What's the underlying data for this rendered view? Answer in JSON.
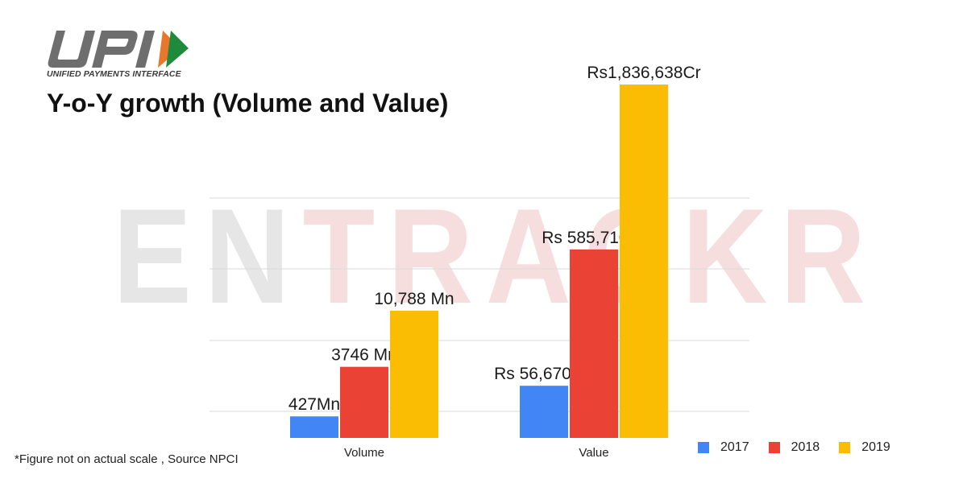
{
  "brand": {
    "logo_text": "UPI",
    "caption": "UNIFIED PAYMENTS INTERFACE",
    "watermark": "ENTRACKR"
  },
  "colors": {
    "2017": "#4285f4",
    "2018": "#ea4335",
    "2019": "#fbbc04",
    "grid": "#d9d9d9",
    "watermark_gray": "#e6e6e6",
    "watermark_red": "#f6dede"
  },
  "chart_data": {
    "type": "bar",
    "title": "Y-o-Y growth (Volume and Value)",
    "categories": [
      "Volume",
      "Value"
    ],
    "series": [
      {
        "name": "2017",
        "values": [
          427,
          56670
        ],
        "labels": [
          "427Mn",
          "Rs 56,670 Cr"
        ]
      },
      {
        "name": "2018",
        "values": [
          3746,
          585710
        ],
        "labels": [
          "3746 Mn",
          "Rs 585,710Cr"
        ]
      },
      {
        "name": "2019",
        "values": [
          10788,
          1836638
        ],
        "labels": [
          "10,788 Mn",
          "Rs1,836,638Cr"
        ]
      }
    ],
    "not_to_scale": true,
    "grid": true,
    "legend": "bottom-right"
  },
  "footnote": "*Figure not on actual scale , Source NPCI"
}
